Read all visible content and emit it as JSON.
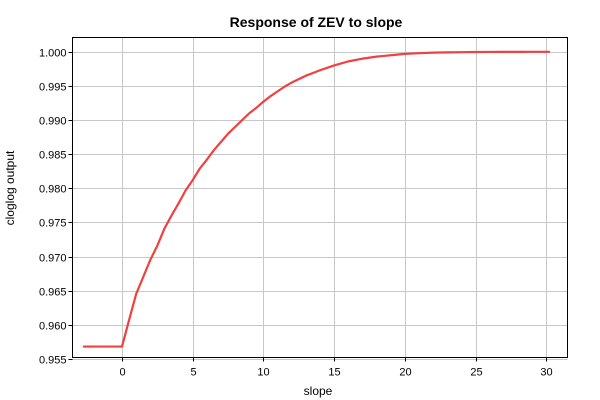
{
  "chart_data": {
    "type": "line",
    "title": "Response of ZEV to slope",
    "xlabel": "slope",
    "ylabel": "cloglog output",
    "xlim": [
      -3.5,
      31.5
    ],
    "ylim": [
      0.9552,
      1.0021
    ],
    "x_ticks": [
      0,
      5,
      10,
      15,
      20,
      25,
      30
    ],
    "x_tick_labels": [
      "0",
      "5",
      "10",
      "15",
      "20",
      "25",
      "30"
    ],
    "y_ticks": [
      0.955,
      0.96,
      0.965,
      0.97,
      0.975,
      0.98,
      0.985,
      0.99,
      0.995,
      1.0
    ],
    "y_tick_labels": [
      "0.955",
      "0.960",
      "0.965",
      "0.970",
      "0.975",
      "0.980",
      "0.985",
      "0.990",
      "0.995",
      "1.000"
    ],
    "grid": true,
    "series": [
      {
        "color": "#f04040",
        "x": [
          -2.7,
          0.0,
          0.5,
          1.0,
          1.5,
          2.0,
          2.5,
          3.0,
          3.5,
          4.0,
          4.5,
          5.0,
          5.5,
          6.0,
          6.5,
          7.0,
          7.5,
          8.0,
          8.5,
          9.0,
          9.5,
          10.0,
          10.5,
          11.0,
          11.5,
          12.0,
          12.5,
          13.0,
          13.5,
          14.0,
          15.0,
          16.0,
          17.0,
          18.0,
          19.0,
          20.0,
          21.0,
          22.0,
          23.0,
          24.0,
          25.0,
          26.0,
          27.0,
          28.0,
          29.0,
          30.2
        ],
        "y": [
          0.9568,
          0.9568,
          0.9607,
          0.9645,
          0.967,
          0.9695,
          0.9716,
          0.9741,
          0.976,
          0.9778,
          0.9797,
          0.9812,
          0.9829,
          0.9842,
          0.9856,
          0.9868,
          0.988,
          0.989,
          0.99,
          0.991,
          0.9918,
          0.9927,
          0.9935,
          0.9942,
          0.9949,
          0.9955,
          0.996,
          0.9965,
          0.9969,
          0.9973,
          0.998,
          0.9986,
          0.999,
          0.9993,
          0.9995,
          0.9997,
          0.9998,
          0.99988,
          0.99992,
          0.99995,
          0.99997,
          0.99998,
          0.99999,
          0.99999,
          1.0,
          1.0
        ]
      }
    ]
  }
}
